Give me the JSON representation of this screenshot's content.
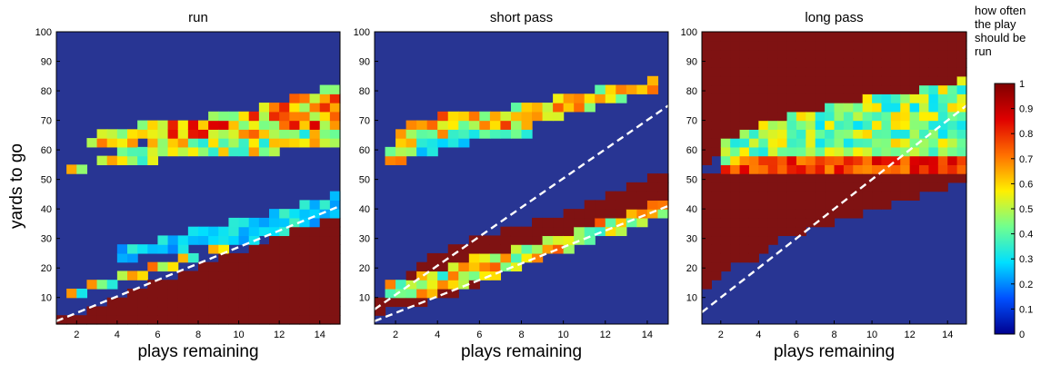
{
  "figure": {
    "ylabel": "yards to go",
    "legend_title_lines": [
      "how often",
      "the play",
      "should be",
      "run"
    ]
  },
  "colors": {
    "scale": [
      "#00008f",
      "#0050ff",
      "#00dfff",
      "#70ff8f",
      "#ffef00",
      "#ff7000",
      "#df0000",
      "#800000"
    ],
    "field": "#283593",
    "dark_red": "#7f1212",
    "dashed_line": "#ffffff"
  },
  "colorbar": {
    "ticks": [
      0,
      0.1,
      0.2,
      0.3,
      0.4,
      0.5,
      0.6,
      0.7,
      0.8,
      0.9,
      1
    ],
    "tick_labels": [
      "0",
      "0.1",
      "0.2",
      "0.3",
      "0.4",
      "0.5",
      "0.6",
      "0.7",
      "0.8",
      "0.9",
      "1"
    ]
  },
  "chart_data": [
    {
      "type": "heatmap",
      "title": "run",
      "xlabel": "plays remaining",
      "ylabel": "yards to go",
      "xlim": [
        1,
        15
      ],
      "ylim": [
        1,
        100
      ],
      "xticks": [
        2,
        4,
        6,
        8,
        10,
        12,
        14
      ],
      "yticks": [
        10,
        20,
        30,
        40,
        50,
        60,
        70,
        80,
        90,
        100
      ],
      "colorbar": false,
      "dashed_lines": [
        {
          "x": [
            1,
            15
          ],
          "y": [
            2,
            41
          ]
        }
      ],
      "regions": [
        {
          "xs": [
            1,
            15
          ],
          "lo": [
            1,
            1
          ],
          "hi": [
            2,
            39
          ],
          "value": 1.0
        },
        {
          "xs": [
            1.6,
            3,
            5,
            7,
            9,
            11,
            13,
            15
          ],
          "lo": [
            10,
            12,
            16,
            21,
            26,
            30,
            34,
            39
          ],
          "hi": [
            13,
            16,
            19,
            23,
            28,
            33,
            37,
            41
          ],
          "value": 0.5,
          "step": 0.22
        },
        {
          "xs": [
            4,
            6,
            8,
            10,
            12,
            14,
            15
          ],
          "lo": [
            22,
            25,
            27,
            29,
            32,
            36,
            39
          ],
          "hi": [
            26,
            30,
            33,
            36,
            39,
            43,
            45
          ],
          "value": 0.28,
          "step": 0.1
        },
        {
          "xs": [
            1.6,
            3,
            5,
            7,
            9,
            11,
            13,
            15
          ],
          "lo": [
            52,
            54,
            56,
            57,
            58,
            59,
            60,
            61
          ],
          "hi": [
            54,
            57,
            62,
            64,
            66,
            68,
            72,
            75
          ],
          "value": 0.5,
          "step": 0.18
        },
        {
          "xs": [
            2.5,
            4,
            6,
            8,
            10,
            12,
            14,
            15
          ],
          "lo": [
            62,
            62,
            63,
            64,
            65,
            66,
            68,
            70
          ],
          "hi": [
            64,
            67,
            70,
            71,
            73,
            76,
            80,
            84
          ],
          "value": 0.65,
          "step": 0.22
        }
      ]
    },
    {
      "type": "heatmap",
      "title": "short pass",
      "xlabel": "plays remaining",
      "ylabel": "",
      "xlim": [
        1,
        15
      ],
      "ylim": [
        1,
        100
      ],
      "xticks": [
        2,
        4,
        6,
        8,
        10,
        12,
        14
      ],
      "yticks": [
        10,
        20,
        30,
        40,
        50,
        60,
        70,
        80,
        90,
        100
      ],
      "colorbar": false,
      "dashed_lines": [
        {
          "x": [
            1,
            15
          ],
          "y": [
            6,
            75
          ]
        },
        {
          "x": [
            1,
            15
          ],
          "y": [
            2,
            41
          ]
        }
      ],
      "regions": [
        {
          "xs": [
            1,
            3,
            5,
            7,
            9,
            11,
            13,
            15
          ],
          "lo": [
            5,
            8,
            12,
            17,
            23,
            28,
            34,
            40
          ],
          "hi": [
            8,
            21,
            28,
            33,
            36,
            41,
            47,
            54
          ],
          "value": 1.0
        },
        {
          "xs": [
            1.5,
            3,
            5,
            7,
            9,
            11,
            13,
            15
          ],
          "lo": [
            9,
            10,
            13,
            18,
            23,
            28,
            33,
            38
          ],
          "hi": [
            14,
            17,
            22,
            26,
            29,
            34,
            38,
            44
          ],
          "value": 0.55,
          "step": 0.22
        },
        {
          "xs": [
            1.6,
            3,
            5,
            7,
            9,
            11,
            13,
            14.5
          ],
          "lo": [
            54,
            58,
            63,
            66,
            70,
            74,
            78,
            81
          ],
          "hi": [
            61,
            71,
            72,
            74,
            77,
            80,
            82,
            84
          ],
          "value": 0.6,
          "step": 0.2
        },
        {
          "xs": [
            3,
            5,
            7,
            9
          ],
          "lo": [
            58,
            62,
            64,
            66
          ],
          "hi": [
            64,
            66,
            67,
            68
          ],
          "value": 0.35,
          "step": 0.12
        }
      ]
    },
    {
      "type": "heatmap",
      "title": "long pass",
      "xlabel": "plays remaining",
      "ylabel": "",
      "xlim": [
        1,
        15
      ],
      "ylim": [
        1,
        100
      ],
      "xticks": [
        2,
        4,
        6,
        8,
        10,
        12,
        14
      ],
      "yticks": [
        10,
        20,
        30,
        40,
        50,
        60,
        70,
        80,
        90,
        100
      ],
      "colorbar": true,
      "dashed_lines": [
        {
          "x": [
            1,
            15
          ],
          "y": [
            5,
            75
          ]
        }
      ],
      "regions": [
        {
          "xs": [
            1,
            15
          ],
          "lo": [
            55,
            85
          ],
          "hi": [
            100,
            100
          ],
          "value": 1.0
        },
        {
          "xs": [
            1,
            2,
            3.6,
            5,
            7,
            9,
            11,
            13,
            14.3,
            15
          ],
          "lo": [
            10,
            20,
            22,
            30,
            33,
            38,
            42,
            45,
            49,
            51
          ],
          "hi": [
            52,
            52,
            52,
            52,
            52,
            52,
            52,
            52,
            52,
            52
          ],
          "value": 1.0
        },
        {
          "xs": [
            2,
            4,
            6,
            8,
            10,
            12,
            14,
            15
          ],
          "lo": [
            52,
            52,
            52,
            52,
            52,
            52,
            52,
            52
          ],
          "hi": [
            62,
            68,
            72,
            75,
            78,
            80,
            82,
            84
          ],
          "value": 0.45,
          "step": 0.16
        },
        {
          "xs": [
            2,
            4,
            6,
            8,
            10,
            12,
            14,
            15
          ],
          "lo": [
            52,
            52,
            52,
            52,
            52,
            52,
            52,
            52
          ],
          "hi": [
            56,
            57,
            57,
            58,
            58,
            58,
            58,
            58
          ],
          "value": 0.78,
          "step": 0.1
        }
      ]
    }
  ]
}
